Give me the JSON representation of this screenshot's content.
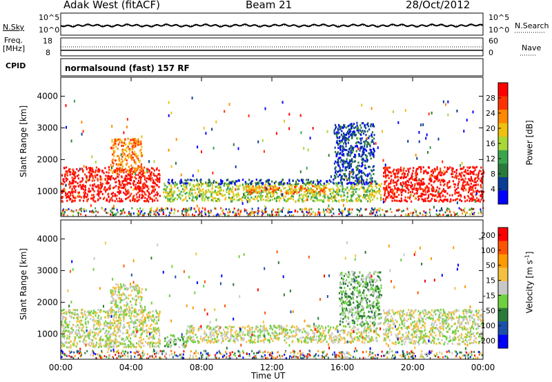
{
  "header": {
    "station": "Adak West (fitACF)",
    "beam": "Beam 21",
    "date": "28/Oct/2012"
  },
  "summary": {
    "nsky_label": "N.Sky",
    "nsearch_label": "N.Search",
    "noise_top_tick": "10^5",
    "noise_bottom_tick": "10^0",
    "freq_label_1": "Freq.",
    "freq_label_2": "[MHz]",
    "freq_top_tick": "18",
    "freq_bottom_tick": "8",
    "nave_label": "Nave",
    "nave_top_tick": "60",
    "nave_bottom_tick": "0",
    "cpid_label": "CPID",
    "cpid_value": "normalsound (fast) 157 RF"
  },
  "colors": {
    "power_scale": [
      "#0000ff",
      "#0b3c96",
      "#2a7a3a",
      "#3aa54c",
      "#a8d836",
      "#f0c010",
      "#ff8800",
      "#ff3300",
      "#ff0000"
    ],
    "velocity_scale": [
      "#0000ff",
      "#1c4fa8",
      "#2a7a3a",
      "#6fd040",
      "#c8c8c8",
      "#f5c040",
      "#ff9900",
      "#ff5500",
      "#ff0000"
    ],
    "ground_scatter": "#c8c8c8"
  },
  "chart_data": [
    {
      "type": "heatmap",
      "title": "",
      "xlabel": "Time UT",
      "ylabel": "Slant Range [km]",
      "xticks": [
        "00:00",
        "04:00",
        "08:00",
        "12:00",
        "16:00",
        "20:00",
        "00:00"
      ],
      "yticks": [
        1000,
        2000,
        3000,
        4000
      ],
      "ylim": [
        200,
        4600
      ],
      "xlim_hours": [
        0,
        24
      ],
      "colorbar_label": "Power [dB]",
      "colorbar_ticks": [
        "4",
        "8",
        "12",
        "16",
        "20",
        "24",
        "28"
      ],
      "regions": [
        {
          "t0": 0.0,
          "t1": 5.6,
          "r0": 700,
          "r1": 1800,
          "level": 8
        },
        {
          "t0": 2.8,
          "t1": 4.6,
          "r0": 1600,
          "r1": 2700,
          "level": 6
        },
        {
          "t0": 5.8,
          "t1": 18.2,
          "r0": 700,
          "r1": 1300,
          "level": 4
        },
        {
          "t0": 10.5,
          "t1": 15.0,
          "r0": 950,
          "r1": 1200,
          "level": 6
        },
        {
          "t0": 6.0,
          "t1": 18.0,
          "r0": 1250,
          "r1": 1400,
          "level": 1
        },
        {
          "t0": 15.5,
          "t1": 17.8,
          "r0": 1400,
          "r1": 3200,
          "level": 1
        },
        {
          "t0": 18.3,
          "t1": 24.0,
          "r0": 700,
          "r1": 1800,
          "level": 8
        }
      ]
    },
    {
      "type": "heatmap",
      "title": "",
      "xlabel": "Time UT",
      "ylabel": "Slant Range [km]",
      "xticks": [
        "00:00",
        "04:00",
        "08:00",
        "12:00",
        "16:00",
        "20:00",
        "00:00"
      ],
      "yticks": [
        1000,
        2000,
        3000,
        4000
      ],
      "ylim": [
        200,
        4600
      ],
      "xlim_hours": [
        0,
        24
      ],
      "colorbar_label": "Velocity [m s^-1]",
      "colorbar_ticks": [
        "200",
        "100",
        "50",
        "15",
        "-15",
        "-50",
        "-100",
        "-200"
      ],
      "regions": [
        {
          "t0": 0.0,
          "t1": 5.6,
          "r0": 600,
          "r1": 1800,
          "level": 4
        },
        {
          "t0": 2.8,
          "t1": 4.6,
          "r0": 1700,
          "r1": 2600,
          "level": 4
        },
        {
          "t0": 5.8,
          "t1": 7.2,
          "r0": 600,
          "r1": 1000,
          "level": 3
        },
        {
          "t0": 7.0,
          "t1": 18.0,
          "r0": 750,
          "r1": 1300,
          "level": 4
        },
        {
          "t0": 15.8,
          "t1": 18.2,
          "r0": 1300,
          "r1": 3000,
          "level": 3
        },
        {
          "t0": 18.3,
          "t1": 24.0,
          "r0": 700,
          "r1": 1800,
          "level": 4
        }
      ]
    }
  ]
}
